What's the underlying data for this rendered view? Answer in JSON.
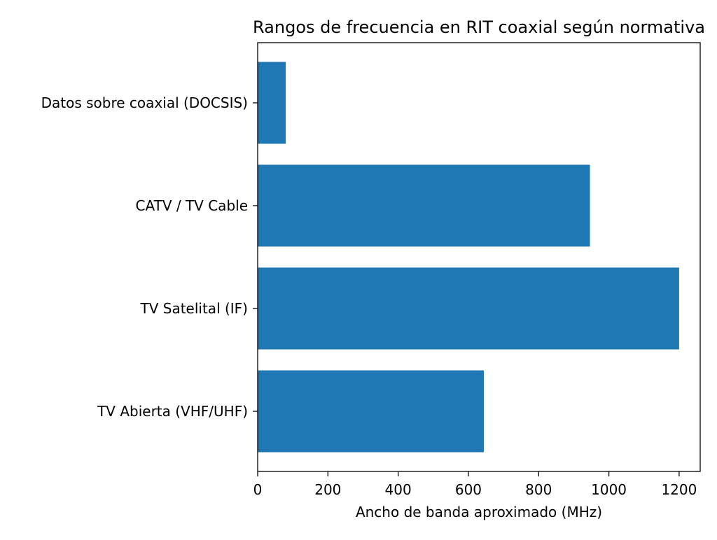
{
  "chart_data": {
    "type": "bar",
    "orientation": "horizontal",
    "title": "Rangos de frecuencia en RIT coaxial según normativa",
    "xlabel": "Ancho de banda aproximado (MHz)",
    "ylabel": "",
    "categories": [
      "TV Abierta (VHF/UHF)",
      "TV Satelital (IF)",
      "CATV / TV Cable",
      "Datos sobre coaxial (DOCSIS)"
    ],
    "values": [
      644,
      1200,
      946,
      80
    ],
    "xlim": [
      0,
      1260
    ],
    "xticks": [
      0,
      200,
      400,
      600,
      800,
      1000,
      1200
    ],
    "xtick_labels": [
      "0",
      "200",
      "400",
      "600",
      "800",
      "1000",
      "1200"
    ],
    "grid": false,
    "bar_color": "#1f77b4"
  }
}
